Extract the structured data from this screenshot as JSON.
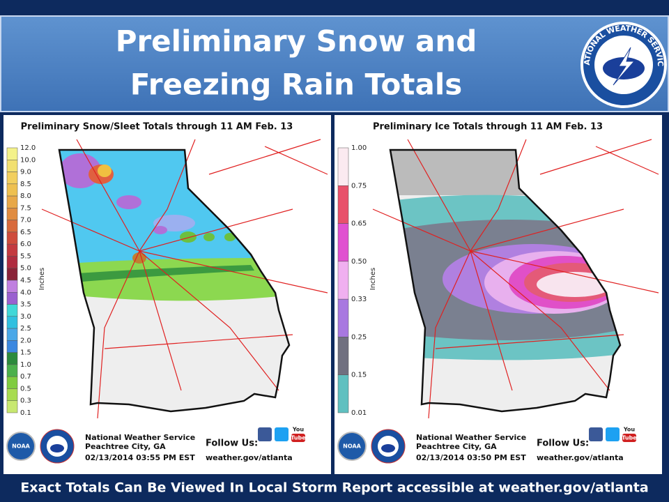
{
  "header": {
    "title_lines": [
      "Preliminary Snow and",
      "Freezing Rain Totals"
    ],
    "logo_text": "NATIONAL WEATHER SERVICE"
  },
  "panels": [
    {
      "title": "Preliminary Snow/Sleet Totals through 11 AM Feb. 13",
      "legend_axis": "Inches",
      "legend_labels": [
        "12.0",
        "10.0",
        "9.0",
        "8.5",
        "8.0",
        "7.5",
        "7.0",
        "6.5",
        "6.0",
        "5.5",
        "5.0",
        "4.5",
        "4.0",
        "3.5",
        "3.0",
        "2.5",
        "2.0",
        "1.5",
        "1.0",
        "0.7",
        "0.5",
        "0.3",
        "0.1"
      ],
      "noaa": "NOAA",
      "office": "National Weather Service",
      "location": "Peachtree City, GA",
      "timestamp": "02/13/2014 03:55 PM EST",
      "follow": "Follow Us:",
      "url": "weather.gov/atlanta",
      "youtube": [
        "You",
        "Tube"
      ]
    },
    {
      "title": "Preliminary Ice Totals through 11 AM Feb. 13",
      "legend_axis": "Inches",
      "legend_labels": [
        "1.00",
        "0.75",
        "0.65",
        "0.50",
        "0.33",
        "0.25",
        "0.15",
        "0.01"
      ],
      "noaa": "NOAA",
      "office": "National Weather Service",
      "location": "Peachtree City, GA",
      "timestamp": "02/13/2014 03:50 PM EST",
      "follow": "Follow Us:",
      "url": "weather.gov/atlanta",
      "youtube": [
        "You",
        "Tube"
      ]
    }
  ],
  "footer": "Exact Totals Can Be Viewed In Local Storm Report  accessible at weather.gov/atlanta"
}
